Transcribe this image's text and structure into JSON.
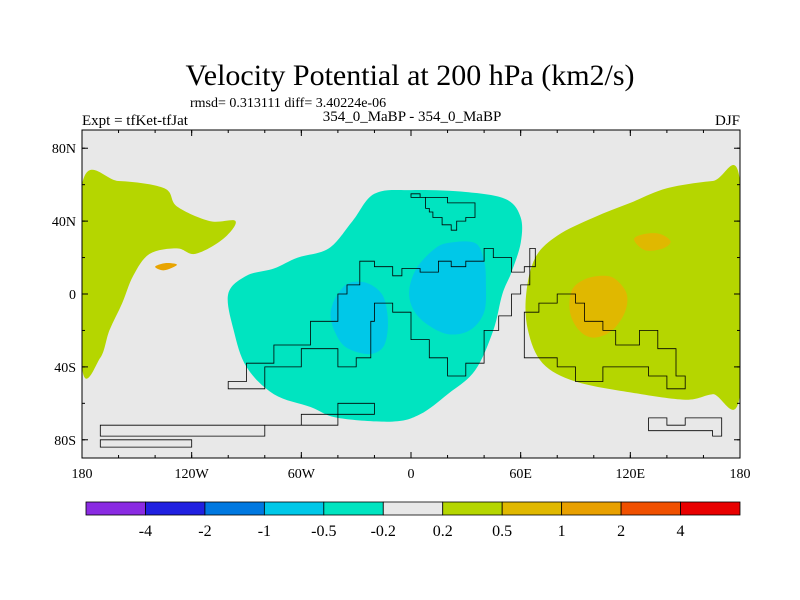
{
  "title": "Velocity Potential at 200 hPa (km2/s)",
  "stats": "rmsd= 0.313111 diff= 3.40224e-06",
  "left_label": "Expt = tfKet-tfJat",
  "center_label": "354_0_MaBP - 354_0_MaBP",
  "right_label": "DJF",
  "chart_data": {
    "type": "heatmap",
    "xlim": [
      -180,
      180
    ],
    "ylim": [
      -90,
      90
    ],
    "x_ticks": [
      {
        "value": -180,
        "label": "180"
      },
      {
        "value": -120,
        "label": "120W"
      },
      {
        "value": -60,
        "label": "60W"
      },
      {
        "value": 0,
        "label": "0"
      },
      {
        "value": 60,
        "label": "60E"
      },
      {
        "value": 120,
        "label": "120E"
      },
      {
        "value": 180,
        "label": "180"
      }
    ],
    "y_ticks": [
      {
        "value": 80,
        "label": "80N"
      },
      {
        "value": 40,
        "label": "40N"
      },
      {
        "value": 0,
        "label": "0"
      },
      {
        "value": -40,
        "label": "40S"
      },
      {
        "value": -80,
        "label": "80S"
      }
    ],
    "background_color": "#e8e8e8",
    "regions": [
      {
        "name": "positive-pacific-west",
        "level": "0.2 to 0.5",
        "color": "#b5d600",
        "points": [
          [
            -180,
            60
          ],
          [
            -160,
            62
          ],
          [
            -135,
            58
          ],
          [
            -128,
            48
          ],
          [
            -110,
            40
          ],
          [
            -96,
            40
          ],
          [
            -103,
            30
          ],
          [
            -118,
            22
          ],
          [
            -128,
            25
          ],
          [
            -143,
            22
          ],
          [
            -152,
            10
          ],
          [
            -158,
            -5
          ],
          [
            -165,
            -20
          ],
          [
            -170,
            -35
          ],
          [
            -180,
            -40
          ]
        ]
      },
      {
        "name": "positive-east",
        "level": "0.2 to 0.5",
        "color": "#b5d600",
        "points": [
          [
            180,
            62
          ],
          [
            165,
            62
          ],
          [
            140,
            58
          ],
          [
            120,
            50
          ],
          [
            100,
            42
          ],
          [
            80,
            32
          ],
          [
            68,
            20
          ],
          [
            63,
            0
          ],
          [
            64,
            -20
          ],
          [
            72,
            -38
          ],
          [
            90,
            -48
          ],
          [
            120,
            -54
          ],
          [
            150,
            -58
          ],
          [
            165,
            -55
          ],
          [
            180,
            -55
          ]
        ]
      },
      {
        "name": "negative-central",
        "level": "-0.5 to -0.2",
        "color": "#00e4c0",
        "points": [
          [
            -100,
            0
          ],
          [
            -97,
            -20
          ],
          [
            -90,
            -40
          ],
          [
            -75,
            -55
          ],
          [
            -55,
            -62
          ],
          [
            -40,
            -68
          ],
          [
            -10,
            -70
          ],
          [
            5,
            -66
          ],
          [
            20,
            -55
          ],
          [
            35,
            -42
          ],
          [
            45,
            -20
          ],
          [
            50,
            0
          ],
          [
            55,
            12
          ],
          [
            60,
            28
          ],
          [
            60,
            42
          ],
          [
            52,
            52
          ],
          [
            30,
            56
          ],
          [
            0,
            57
          ],
          [
            -20,
            55
          ],
          [
            -32,
            40
          ],
          [
            -45,
            25
          ],
          [
            -62,
            20
          ],
          [
            -75,
            14
          ],
          [
            -90,
            10
          ]
        ]
      },
      {
        "name": "negative-africa-core",
        "level": "-1 to -0.5",
        "color": "#00c8e8",
        "points": [
          [
            -1,
            2
          ],
          [
            3,
            14
          ],
          [
            12,
            24
          ],
          [
            20,
            28
          ],
          [
            35,
            28
          ],
          [
            40,
            18
          ],
          [
            41,
            6
          ],
          [
            40,
            -10
          ],
          [
            32,
            -20
          ],
          [
            20,
            -22
          ],
          [
            8,
            -16
          ],
          [
            1,
            -8
          ]
        ]
      },
      {
        "name": "negative-atlantic-core",
        "level": "-1 to -0.5",
        "color": "#00c8e8",
        "points": [
          [
            -43,
            -6
          ],
          [
            -40,
            0
          ],
          [
            -34,
            6
          ],
          [
            -24,
            6
          ],
          [
            -16,
            0
          ],
          [
            -13,
            -10
          ],
          [
            -13,
            -22
          ],
          [
            -16,
            -30
          ],
          [
            -24,
            -33
          ],
          [
            -36,
            -29
          ],
          [
            -42,
            -20
          ],
          [
            -44,
            -12
          ]
        ]
      },
      {
        "name": "positive-asia-core",
        "level": "0.5 to 1",
        "color": "#e0b800",
        "points": [
          [
            88,
            2
          ],
          [
            95,
            8
          ],
          [
            105,
            10
          ],
          [
            112,
            8
          ],
          [
            118,
            0
          ],
          [
            117,
            -10
          ],
          [
            110,
            -20
          ],
          [
            100,
            -24
          ],
          [
            92,
            -20
          ],
          [
            87,
            -10
          ]
        ]
      },
      {
        "name": "positive-east-small",
        "level": "0.5 to 1",
        "color": "#e0b800",
        "points": [
          [
            122,
            30
          ],
          [
            128,
            33
          ],
          [
            136,
            33
          ],
          [
            142,
            29
          ],
          [
            138,
            25
          ],
          [
            128,
            24
          ]
        ]
      },
      {
        "name": "positive-pacific-small",
        "level": "0.5 to 1",
        "color": "#e8a400",
        "points": [
          [
            -140,
            15
          ],
          [
            -134,
            17
          ],
          [
            -128,
            16
          ],
          [
            -135,
            13
          ]
        ]
      }
    ],
    "outline_points": [
      [
        [
          0,
          55
        ],
        [
          5,
          55
        ],
        [
          5,
          53
        ],
        [
          8,
          53
        ],
        [
          8,
          47
        ],
        [
          10,
          47
        ],
        [
          10,
          45
        ],
        [
          12,
          45
        ],
        [
          12,
          42
        ],
        [
          17,
          42
        ],
        [
          17,
          38
        ],
        [
          22,
          38
        ],
        [
          22,
          35
        ],
        [
          25,
          35
        ],
        [
          25,
          40
        ],
        [
          30,
          40
        ],
        [
          30,
          42
        ],
        [
          35,
          42
        ],
        [
          35,
          50
        ],
        [
          20,
          50
        ],
        [
          20,
          53
        ],
        [
          0,
          53
        ]
      ],
      [
        [
          -28,
          18
        ],
        [
          -20,
          18
        ],
        [
          -20,
          15
        ],
        [
          -10,
          15
        ],
        [
          -10,
          10
        ],
        [
          -5,
          10
        ],
        [
          -5,
          14
        ],
        [
          5,
          14
        ],
        [
          5,
          12
        ],
        [
          15,
          12
        ],
        [
          15,
          18
        ],
        [
          22,
          18
        ],
        [
          22,
          15
        ],
        [
          30,
          15
        ],
        [
          30,
          18
        ],
        [
          40,
          18
        ],
        [
          40,
          25
        ],
        [
          45,
          25
        ],
        [
          45,
          20
        ],
        [
          55,
          20
        ],
        [
          55,
          12
        ],
        [
          62,
          12
        ],
        [
          62,
          15
        ],
        [
          68,
          15
        ],
        [
          68,
          25
        ],
        [
          65,
          25
        ],
        [
          65,
          5
        ],
        [
          60,
          5
        ],
        [
          60,
          0
        ],
        [
          55,
          0
        ],
        [
          55,
          -12
        ],
        [
          48,
          -12
        ],
        [
          48,
          -20
        ],
        [
          40,
          -20
        ],
        [
          40,
          -38
        ],
        [
          30,
          -38
        ],
        [
          30,
          -45
        ],
        [
          20,
          -45
        ],
        [
          20,
          -35
        ],
        [
          10,
          -35
        ],
        [
          10,
          -25
        ],
        [
          0,
          -25
        ],
        [
          0,
          -10
        ],
        [
          -10,
          -10
        ],
        [
          -10,
          -5
        ],
        [
          -20,
          -5
        ],
        [
          -20,
          -15
        ],
        [
          -22,
          -15
        ],
        [
          -22,
          -35
        ],
        [
          -30,
          -35
        ],
        [
          -30,
          -40
        ],
        [
          -40,
          -40
        ],
        [
          -40,
          -30
        ],
        [
          -60,
          -30
        ],
        [
          -60,
          -40
        ],
        [
          -80,
          -40
        ],
        [
          -80,
          -52
        ],
        [
          -100,
          -52
        ],
        [
          -100,
          -48
        ],
        [
          -90,
          -48
        ],
        [
          -90,
          -38
        ],
        [
          -75,
          -38
        ],
        [
          -75,
          -28
        ],
        [
          -55,
          -28
        ],
        [
          -55,
          -15
        ],
        [
          -40,
          -15
        ],
        [
          -40,
          0
        ],
        [
          -35,
          0
        ],
        [
          -35,
          5
        ],
        [
          -28,
          5
        ]
      ],
      [
        [
          62,
          -10
        ],
        [
          70,
          -10
        ],
        [
          70,
          -5
        ],
        [
          80,
          -5
        ],
        [
          80,
          0
        ],
        [
          90,
          0
        ],
        [
          90,
          -5
        ],
        [
          95,
          -5
        ],
        [
          95,
          -15
        ],
        [
          105,
          -15
        ],
        [
          105,
          -20
        ],
        [
          112,
          -20
        ],
        [
          112,
          -28
        ],
        [
          125,
          -28
        ],
        [
          125,
          -20
        ],
        [
          135,
          -20
        ],
        [
          135,
          -30
        ],
        [
          145,
          -30
        ],
        [
          145,
          -45
        ],
        [
          150,
          -45
        ],
        [
          150,
          -52
        ],
        [
          140,
          -52
        ],
        [
          140,
          -45
        ],
        [
          130,
          -45
        ],
        [
          130,
          -40
        ],
        [
          105,
          -40
        ],
        [
          105,
          -48
        ],
        [
          90,
          -48
        ],
        [
          90,
          -40
        ],
        [
          80,
          -40
        ],
        [
          80,
          -35
        ],
        [
          62,
          -35
        ]
      ],
      [
        [
          130,
          -68
        ],
        [
          140,
          -68
        ],
        [
          140,
          -72
        ],
        [
          150,
          -72
        ],
        [
          150,
          -68
        ],
        [
          170,
          -68
        ],
        [
          170,
          -78
        ],
        [
          165,
          -78
        ],
        [
          165,
          -75
        ],
        [
          130,
          -75
        ]
      ],
      [
        [
          -170,
          -72
        ],
        [
          -60,
          -72
        ],
        [
          -60,
          -66
        ],
        [
          -40,
          -66
        ],
        [
          -40,
          -60
        ],
        [
          -20,
          -60
        ],
        [
          -20,
          -66
        ],
        [
          -40,
          -66
        ],
        [
          -40,
          -72
        ],
        [
          -80,
          -72
        ],
        [
          -80,
          -78
        ],
        [
          -170,
          -78
        ]
      ],
      [
        [
          -170,
          -80
        ],
        [
          -120,
          -80
        ],
        [
          -120,
          -84
        ],
        [
          -170,
          -84
        ]
      ]
    ]
  },
  "colorbar": {
    "colors": [
      "#8a2be2",
      "#2020e0",
      "#0078e0",
      "#00c8e8",
      "#00e4c0",
      "#e8e8e8",
      "#b5d600",
      "#e0b800",
      "#e8a000",
      "#f05000",
      "#e80000"
    ],
    "labels": [
      "-4",
      "-2",
      "-1",
      "-0.5",
      "-0.2",
      "0.2",
      "0.5",
      "1",
      "2",
      "4"
    ]
  }
}
